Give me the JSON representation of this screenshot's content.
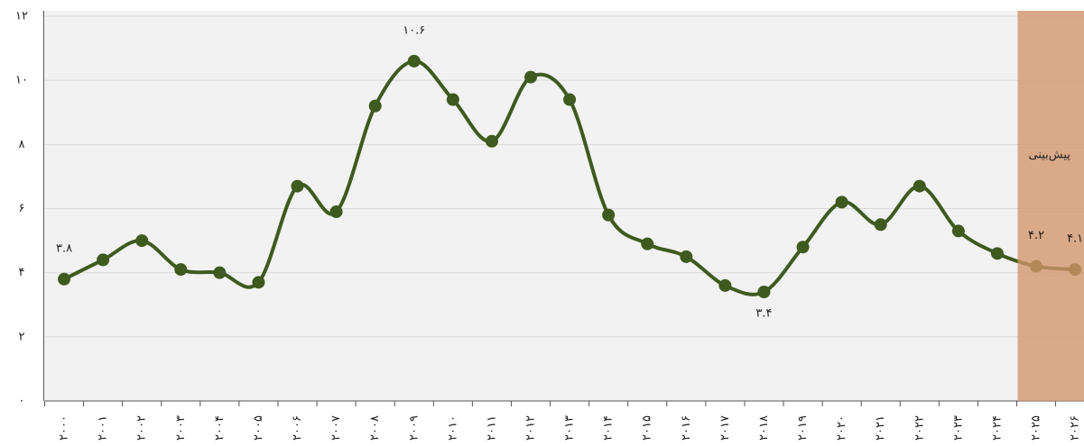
{
  "chart_data": {
    "type": "line",
    "categories": [
      "۲۰۰۰",
      "۲۰۰۱",
      "۲۰۰۲",
      "۲۰۰۳",
      "۲۰۰۴",
      "۲۰۰۵",
      "۲۰۰۶",
      "۲۰۰۷",
      "۲۰۰۸",
      "۲۰۰۹",
      "۲۰۱۰",
      "۲۰۱۱",
      "۲۰۱۲",
      "۲۰۱۳",
      "۲۰۱۴",
      "۲۰۱۵",
      "۲۰۱۶",
      "۲۰۱۷",
      "۲۰۱۸",
      "۲۰۱۹",
      "۲۰۲۰",
      "۲۰۲۱",
      "۲۰۲۲",
      "۲۰۲۳",
      "۲۰۲۴",
      "۲۰۲۵",
      "۲۰۲۶"
    ],
    "values": [
      3.8,
      4.4,
      5.0,
      4.1,
      4.0,
      3.7,
      6.7,
      5.9,
      9.2,
      10.6,
      9.4,
      8.1,
      10.1,
      9.4,
      5.8,
      4.9,
      4.5,
      3.6,
      3.4,
      4.8,
      6.2,
      5.5,
      6.7,
      5.3,
      4.6,
      4.2,
      4.1
    ],
    "value_labels": [
      "۳.۸",
      null,
      null,
      null,
      null,
      null,
      null,
      null,
      null,
      "۱۰.۶",
      null,
      null,
      null,
      null,
      null,
      null,
      null,
      null,
      "۳.۴",
      null,
      null,
      null,
      null,
      null,
      null,
      "۴.۲",
      "۴.۱"
    ],
    "color": "#3e5a1f",
    "ylim": [
      0,
      12
    ],
    "yticks": [
      {
        "value": 0,
        "label": "۰"
      },
      {
        "value": 2,
        "label": "۲"
      },
      {
        "value": 4,
        "label": "۴"
      },
      {
        "value": 6,
        "label": "۶"
      },
      {
        "value": 8,
        "label": "۸"
      },
      {
        "value": 10,
        "label": "۱۰"
      },
      {
        "value": 12,
        "label": "۱۲"
      }
    ],
    "grid": true,
    "forecast": {
      "label": "پیش‌بینی",
      "from": "۲۰۲۵",
      "color": "#d4956a"
    }
  }
}
